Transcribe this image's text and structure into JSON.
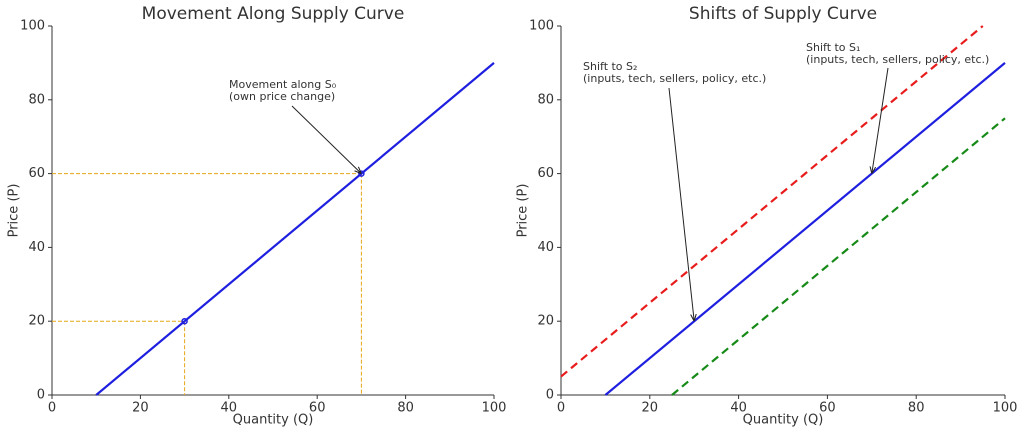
{
  "chart_data": [
    {
      "type": "line",
      "title": "Movement Along Supply Curve",
      "xlabel": "Quantity (Q)",
      "ylabel": "Price (P)",
      "xlim": [
        0,
        100
      ],
      "ylim": [
        0,
        100
      ],
      "xticks": [
        0,
        20,
        40,
        60,
        80,
        100
      ],
      "yticks": [
        0,
        20,
        40,
        60,
        80,
        100
      ],
      "series": [
        {
          "color": "#1f1fe0",
          "dashed": false,
          "x": [
            10,
            100
          ],
          "values": [
            0,
            90
          ]
        }
      ],
      "points": {
        "color": "#1f1fe0",
        "guide_color": "#e6a817",
        "x": [
          30,
          70
        ],
        "values": [
          20,
          60
        ]
      },
      "annotations": [
        {
          "lines": [
            "Movement along S₀",
            "(own price change)"
          ],
          "xy": [
            70,
            60
          ]
        }
      ]
    },
    {
      "type": "line",
      "title": "Shifts of Supply Curve",
      "xlabel": "Quantity (Q)",
      "ylabel": "Price (P)",
      "xlim": [
        0,
        100
      ],
      "ylim": [
        0,
        100
      ],
      "xticks": [
        0,
        20,
        40,
        60,
        80,
        100
      ],
      "yticks": [
        0,
        20,
        40,
        60,
        80,
        100
      ],
      "series": [
        {
          "color": "#1f1fe0",
          "dashed": false,
          "x": [
            10,
            100
          ],
          "values": [
            0,
            90
          ]
        },
        {
          "color": "#e81c1c",
          "dashed": true,
          "x": [
            0,
            95
          ],
          "values": [
            5,
            100
          ]
        },
        {
          "color": "#168a16",
          "dashed": true,
          "x": [
            25,
            100
          ],
          "values": [
            0,
            75
          ]
        }
      ],
      "annotations": [
        {
          "lines": [
            "Shift to S₂",
            "(inputs, tech, sellers, policy, etc.)"
          ],
          "xy": [
            30,
            20
          ]
        },
        {
          "lines": [
            "Shift to S₁",
            "(inputs, tech, sellers, policy, etc.)"
          ],
          "xy": [
            70,
            60
          ]
        }
      ]
    }
  ]
}
